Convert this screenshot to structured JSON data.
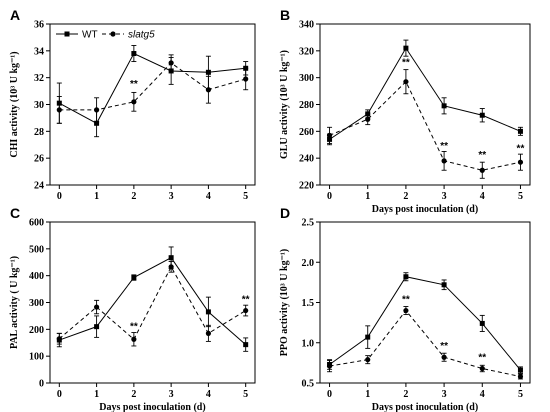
{
  "legend": [
    {
      "label": "WT",
      "style": "solid",
      "marker": "square",
      "italic": false
    },
    {
      "label": "slatg5",
      "style": "dashed",
      "marker": "circle",
      "italic": true
    }
  ],
  "chart_data": [
    {
      "panel": "A",
      "type": "line",
      "title": "",
      "xlabel": "",
      "ylabel": "CHI activity (10³ U kg⁻¹)",
      "x": [
        0,
        1,
        2,
        3,
        4,
        5
      ],
      "xlim": [
        -0.25,
        5.25
      ],
      "ylim": [
        24,
        36
      ],
      "yticks": [
        24,
        26,
        28,
        30,
        32,
        34,
        36
      ],
      "show_legend": true,
      "series": [
        {
          "name": "WT",
          "values": [
            30.1,
            28.6,
            33.8,
            32.5,
            32.4,
            32.7
          ],
          "errors": [
            1.5,
            1.0,
            0.6,
            1.0,
            1.2,
            0.5
          ]
        },
        {
          "name": "slatg5",
          "values": [
            29.6,
            29.6,
            30.2,
            33.1,
            31.1,
            31.9
          ],
          "errors": [
            1.0,
            0.9,
            0.7,
            0.6,
            1.0,
            0.8
          ]
        }
      ],
      "annotations": [
        {
          "x": 2,
          "y": 31.3,
          "text": "**"
        }
      ]
    },
    {
      "panel": "B",
      "type": "line",
      "title": "",
      "xlabel": "Days post inoculation (d)",
      "ylabel": "GLU activity (10³ U kg⁻¹)",
      "x": [
        0,
        1,
        2,
        3,
        4,
        5
      ],
      "xlim": [
        -0.25,
        5.25
      ],
      "ylim": [
        220,
        340
      ],
      "yticks": [
        220,
        240,
        260,
        280,
        300,
        320,
        340
      ],
      "show_legend": false,
      "series": [
        {
          "name": "WT",
          "values": [
            254,
            273,
            322,
            279,
            272,
            260
          ],
          "errors": [
            4,
            3,
            6,
            6,
            5,
            3
          ]
        },
        {
          "name": "slatg5",
          "values": [
            257,
            269,
            297,
            238,
            231,
            237
          ],
          "errors": [
            6,
            4,
            9,
            7,
            6,
            6
          ]
        }
      ],
      "annotations": [
        {
          "x": 2,
          "y": 309,
          "text": "**"
        },
        {
          "x": 3,
          "y": 247,
          "text": "**"
        },
        {
          "x": 4,
          "y": 240,
          "text": "**"
        },
        {
          "x": 5,
          "y": 245,
          "text": "**"
        }
      ]
    },
    {
      "panel": "C",
      "type": "line",
      "title": "",
      "xlabel": "Days post inoculation (d)",
      "ylabel": "PAL activity ( U kg⁻¹)",
      "x": [
        0,
        1,
        2,
        3,
        4,
        5
      ],
      "xlim": [
        -0.25,
        5.25
      ],
      "ylim": [
        0,
        600
      ],
      "yticks": [
        0,
        100,
        200,
        300,
        400,
        500,
        600
      ],
      "show_legend": false,
      "series": [
        {
          "name": "WT",
          "values": [
            160,
            210,
            393,
            467,
            265,
            143
          ],
          "errors": [
            25,
            40,
            10,
            40,
            55,
            25
          ]
        },
        {
          "name": "slatg5",
          "values": [
            165,
            283,
            163,
            433,
            185,
            270
          ],
          "errors": [
            20,
            25,
            25,
            20,
            30,
            20
          ]
        }
      ],
      "annotations": [
        {
          "x": 2,
          "y": 200,
          "text": "**"
        },
        {
          "x": 5,
          "y": 300,
          "text": "**"
        }
      ]
    },
    {
      "panel": "D",
      "type": "line",
      "title": "",
      "xlabel": "Days post inoculation (d)",
      "ylabel": "PPO activity (10³ U kg⁻¹)",
      "x": [
        0,
        1,
        2,
        3,
        4,
        5
      ],
      "xlim": [
        -0.25,
        5.25
      ],
      "ylim": [
        0.5,
        2.5
      ],
      "yticks": [
        0.5,
        1.0,
        1.5,
        2.0,
        2.5
      ],
      "show_legend": false,
      "series": [
        {
          "name": "WT",
          "values": [
            0.73,
            1.07,
            1.82,
            1.72,
            1.24,
            0.66
          ],
          "errors": [
            0.06,
            0.14,
            0.05,
            0.06,
            0.1,
            0.04
          ]
        },
        {
          "name": "slatg5",
          "values": [
            0.71,
            0.79,
            1.4,
            0.82,
            0.68,
            0.58
          ],
          "errors": [
            0.07,
            0.05,
            0.05,
            0.05,
            0.04,
            0.03
          ]
        }
      ],
      "annotations": [
        {
          "x": 2,
          "y": 1.5,
          "text": "**"
        },
        {
          "x": 3,
          "y": 0.92,
          "text": "**"
        },
        {
          "x": 4,
          "y": 0.78,
          "text": "**"
        }
      ]
    }
  ]
}
